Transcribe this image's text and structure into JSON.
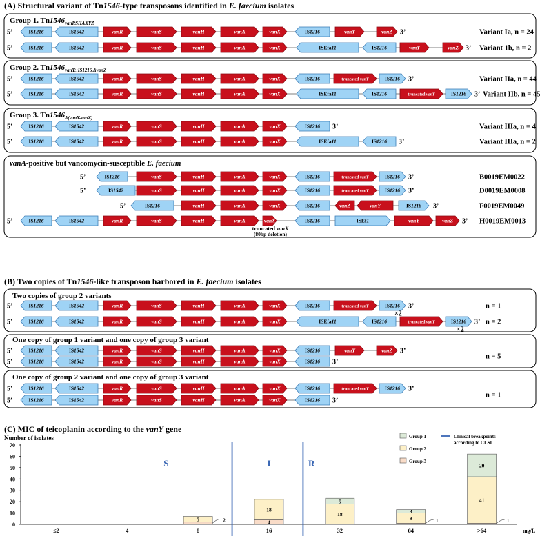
{
  "colors": {
    "red": "#c8101c",
    "blue": "#9fd3f5",
    "box": "#000000",
    "g1": "#dcead8",
    "g2": "#fdf0c7",
    "g3": "#f9dcc8",
    "clsi": "#3a67b4"
  },
  "sectionA": {
    "pre": "(A) Structural variant of Tn",
    "mid1": "1546",
    "mid2": "-type transposons identified in ",
    "it": "E. faecium",
    "post": " isolates"
  },
  "sectionB": {
    "pre": "(B) Two copies of Tn",
    "mid1": "1546",
    "mid2": "-like transposon harbored in ",
    "it": "E. faecium",
    "post": " isolates"
  },
  "sectionC": {
    "pre": "(C) MIC of teicoplanin according to the ",
    "it": "vanY",
    "post": " gene"
  },
  "groups": [
    {
      "title_pre": "Group 1. Tn",
      "title_num": "1546",
      "title_sub": "vanRSHAXYZ"
    },
    {
      "title_pre": "Group 2. Tn",
      "title_num": "1546",
      "title_sub": "vanY::IS1216,ΔvanZ"
    },
    {
      "title_pre": "Group 3. Tn",
      "title_num": "1546",
      "title_sub": "Δ(vanY-vanZ)"
    },
    {
      "title_it": "vanA",
      "title_post": "-positive but vancomycin-susceptible ",
      "title_it2": "E. faecium"
    }
  ],
  "groupsB": [
    {
      "title": "Two copies of group 2 variants"
    },
    {
      "title": "One copy of group 1 variant and one copy of group 3 variant"
    },
    {
      "title": "One copy of group 2 variant and one copy of group 3 variant"
    }
  ],
  "labels": {
    "five": "5’",
    "three": "3’",
    "times2": "×2",
    "trunc": "truncated ",
    "truncX": "truncated ",
    "vanX": "vanX",
    "deletion": "(80bp deletion)"
  },
  "genes": {
    "IS1216": "IS1216",
    "IS1542": "IS1542",
    "vanR": "vanR",
    "vanS": "vanS",
    "vanH": "vanH",
    "vanA": "vanA",
    "vanX": "vanX",
    "vanY": "vanY",
    "vanZ": "vanZ",
    "ISEfa11": "ISEfa11",
    "ISEf1": "ISEf1"
  },
  "rowlabels": {
    "r1": "Variant Ia, n = 24",
    "r2": "Variant 1b, n = 2",
    "r3": "Variant IIa, n = 44",
    "r4": "Variant IIb, n = 45",
    "r5": "Variant IIIa, n = 4",
    "r6": "Variant IIIa, n = 2",
    "r7": "B0019EM0022",
    "r8": "D0019EM0008",
    "r9": "F0019EM0049",
    "r10": "H0019EM0013",
    "b1": "n = 1",
    "b2": "n = 2",
    "b3": "n = 5",
    "b4": "n = 1"
  },
  "chart_data": {
    "type": "bar",
    "ylabel": "Number of isolates",
    "xlabel": "mg/L",
    "ylim": [
      0,
      70
    ],
    "yticks": [
      0,
      10,
      20,
      30,
      40,
      50,
      60,
      70
    ],
    "categories": [
      "≤2",
      "4",
      "8",
      "16",
      "32",
      "64",
      ">64"
    ],
    "series": [
      {
        "name": "Group 1",
        "color": "#dcead8",
        "values": [
          0,
          0,
          0,
          0,
          5,
          3,
          20
        ]
      },
      {
        "name": "Group 2",
        "color": "#fdf0c7",
        "values": [
          0,
          0,
          5,
          18,
          18,
          9,
          41
        ]
      },
      {
        "name": "Group 3",
        "color": "#f9dcc8",
        "values": [
          0,
          0,
          2,
          4,
          0,
          1,
          1
        ]
      }
    ],
    "regions": [
      "S",
      "I",
      "R"
    ],
    "breakpoint_label": "Clinical breakpoints according to CLSI",
    "legend": "top-right"
  }
}
